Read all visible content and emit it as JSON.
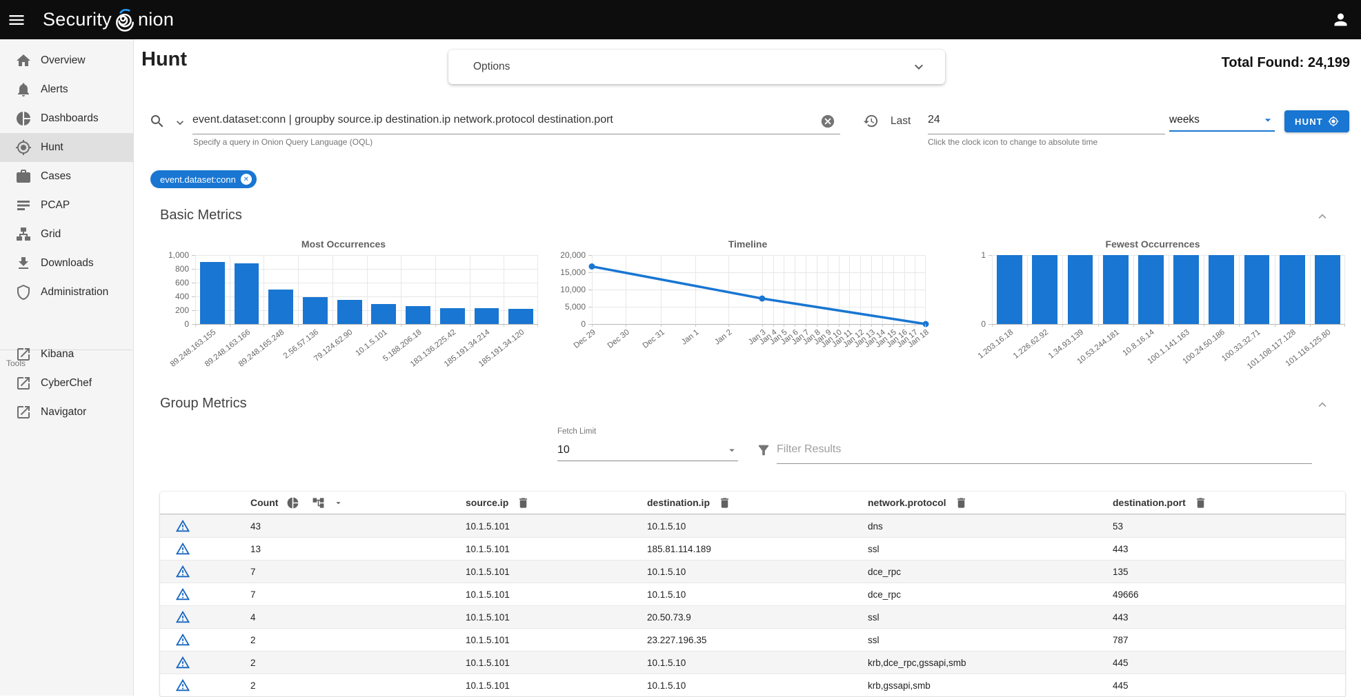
{
  "accent_color": "#1976d2",
  "topbar": {
    "brand_prefix": "Security",
    "brand_suffix": "nion",
    "accent_color": "#2196f3"
  },
  "sidebar": {
    "items": [
      {
        "icon": "home-icon",
        "label": "Overview",
        "selected": false
      },
      {
        "icon": "bell-icon",
        "label": "Alerts",
        "selected": false
      },
      {
        "icon": "pie-chart-icon",
        "label": "Dashboards",
        "selected": false
      },
      {
        "icon": "crosshair-icon",
        "label": "Hunt",
        "selected": true
      },
      {
        "icon": "briefcase-icon",
        "label": "Cases",
        "selected": false
      },
      {
        "icon": "list-icon",
        "label": "PCAP",
        "selected": false
      },
      {
        "icon": "sitemap-icon",
        "label": "Grid",
        "selected": false
      },
      {
        "icon": "download-icon",
        "label": "Downloads",
        "selected": false
      },
      {
        "icon": "shield-icon",
        "label": "Administration",
        "selected": false
      }
    ],
    "tools_label": "Tools",
    "tools": [
      {
        "icon": "external-link-icon",
        "label": "Kibana"
      },
      {
        "icon": "external-link-icon",
        "label": "CyberChef"
      },
      {
        "icon": "external-link-icon",
        "label": "Navigator"
      }
    ]
  },
  "header": {
    "page_title": "Hunt",
    "options_label": "Options",
    "total_found_label": "Total Found:",
    "total_found_value": "24,199"
  },
  "query": {
    "value": "event.dataset:conn | groupby source.ip destination.ip network.protocol destination.port",
    "helper": "Specify a query in Onion Query Language (OQL)",
    "last_label": "Last",
    "duration_value": "24",
    "duration_unit": "weeks",
    "time_helper": "Click the clock icon to change to absolute time",
    "hunt_button_label": "HUNT",
    "filter_chip": "event.dataset:conn"
  },
  "sections": {
    "basic_metrics_title": "Basic Metrics",
    "group_metrics_title": "Group Metrics"
  },
  "group_controls": {
    "fetch_limit_label": "Fetch Limit",
    "fetch_limit_value": "10",
    "filter_placeholder": "Filter Results"
  },
  "chart_data": [
    {
      "type": "bar",
      "title": "Most Occurrences",
      "categories": [
        "89.248.163.155",
        "89.248.163.166",
        "89.248.165.248",
        "2.56.57.136",
        "79.124.62.90",
        "10.1.5.101",
        "5.188.206.18",
        "183.136.225.42",
        "185.191.34.214",
        "185.191.34.120"
      ],
      "values": [
        900,
        885,
        500,
        395,
        350,
        295,
        260,
        235,
        230,
        225
      ],
      "ylim": [
        0,
        1000
      ],
      "yticks": [
        0,
        200,
        400,
        600,
        800,
        1000
      ],
      "grid": true,
      "bar_color": "#1976d2"
    },
    {
      "type": "line",
      "title": "Timeline",
      "x_labels": [
        "Dec 29",
        "Dec 30",
        "Dec 31",
        "Jan 1",
        "Jan 2",
        "Jan 3",
        "Jan 4",
        "Jan 5",
        "Jan 6",
        "Jan 7",
        "Jan 8",
        "Jan 9",
        "Jan 10",
        "Jan 11",
        "Jan 12",
        "Jan 13",
        "Jan 14",
        "Jan 15",
        "Jan 16",
        "Jan 17",
        "Jan 18"
      ],
      "x_positions_pct": [
        0,
        10.2,
        20.7,
        31.0,
        41.0,
        51.0,
        54.3,
        57.5,
        60.8,
        64.1,
        67.3,
        70.6,
        73.9,
        77.1,
        80.4,
        83.7,
        86.9,
        90.2,
        93.5,
        96.7,
        100
      ],
      "points": [
        {
          "x": "Dec 29",
          "value": 16700
        },
        {
          "x": "Jan 3",
          "value": 7400
        },
        {
          "x": "Jan 18",
          "value": 0
        }
      ],
      "ylim": [
        0,
        20000
      ],
      "yticks": [
        0,
        5000,
        10000,
        15000,
        20000
      ],
      "grid": true,
      "line_color": "#1976d2"
    },
    {
      "type": "bar",
      "title": "Fewest Occurrences",
      "categories": [
        "1.203.16.18",
        "1.226.62.92",
        "1.34.93.139",
        "10.53.244.181",
        "10.8.16.14",
        "100.1.141.163",
        "100.24.50.186",
        "100.33.32.71",
        "101.108.117.128",
        "101.116.125.80"
      ],
      "values": [
        1,
        1,
        1,
        1,
        1,
        1,
        1,
        1,
        1,
        1
      ],
      "ylim": [
        0,
        1
      ],
      "yticks": [
        0,
        1
      ],
      "grid": true,
      "bar_color": "#1976d2"
    }
  ],
  "table": {
    "columns": [
      "Count",
      "source.ip",
      "destination.ip",
      "network.protocol",
      "destination.port"
    ],
    "rows": [
      [
        "43",
        "10.1.5.101",
        "10.1.5.10",
        "dns",
        "53"
      ],
      [
        "13",
        "10.1.5.101",
        "185.81.114.189",
        "ssl",
        "443"
      ],
      [
        "7",
        "10.1.5.101",
        "10.1.5.10",
        "dce_rpc",
        "135"
      ],
      [
        "7",
        "10.1.5.101",
        "10.1.5.10",
        "dce_rpc",
        "49666"
      ],
      [
        "4",
        "10.1.5.101",
        "20.50.73.9",
        "ssl",
        "443"
      ],
      [
        "2",
        "10.1.5.101",
        "23.227.196.35",
        "ssl",
        "787"
      ],
      [
        "2",
        "10.1.5.101",
        "10.1.5.10",
        "krb,dce_rpc,gssapi,smb",
        "445"
      ],
      [
        "2",
        "10.1.5.101",
        "10.1.5.10",
        "krb,gssapi,smb",
        "445"
      ]
    ]
  }
}
